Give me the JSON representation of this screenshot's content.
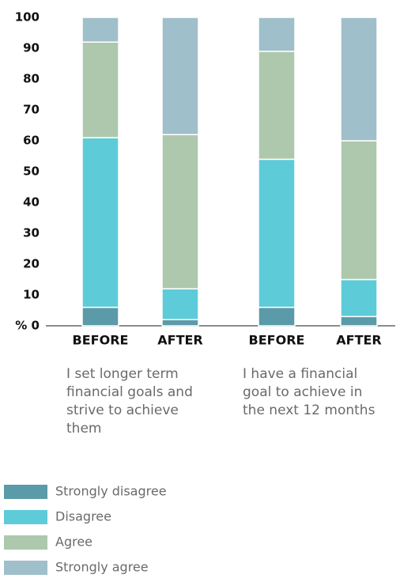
{
  "chart_data": {
    "type": "stacked_bar",
    "categories": [
      "BEFORE",
      "AFTER",
      "BEFORE",
      "AFTER"
    ],
    "group_labels": [
      "I set longer term financial goals and strive to achieve them",
      "I have a financial goal to achieve in the next 12 months"
    ],
    "series": [
      {
        "name": "Strongly disagree",
        "color": "#5b9aa8",
        "values": [
          6,
          2,
          6,
          3
        ]
      },
      {
        "name": "Disagree",
        "color": "#5ecbd9",
        "values": [
          55,
          10,
          48,
          12
        ]
      },
      {
        "name": "Agree",
        "color": "#adc8ad",
        "values": [
          31,
          50,
          35,
          45
        ]
      },
      {
        "name": "Strongly agree",
        "color": "#9fbfca",
        "values": [
          8,
          38,
          11,
          40
        ]
      }
    ],
    "ylim": [
      0,
      100
    ],
    "yticks": [
      {
        "value": 0,
        "label": "% 0"
      },
      10,
      20,
      30,
      40,
      50,
      60,
      70,
      80,
      90,
      100
    ],
    "grid": false
  }
}
